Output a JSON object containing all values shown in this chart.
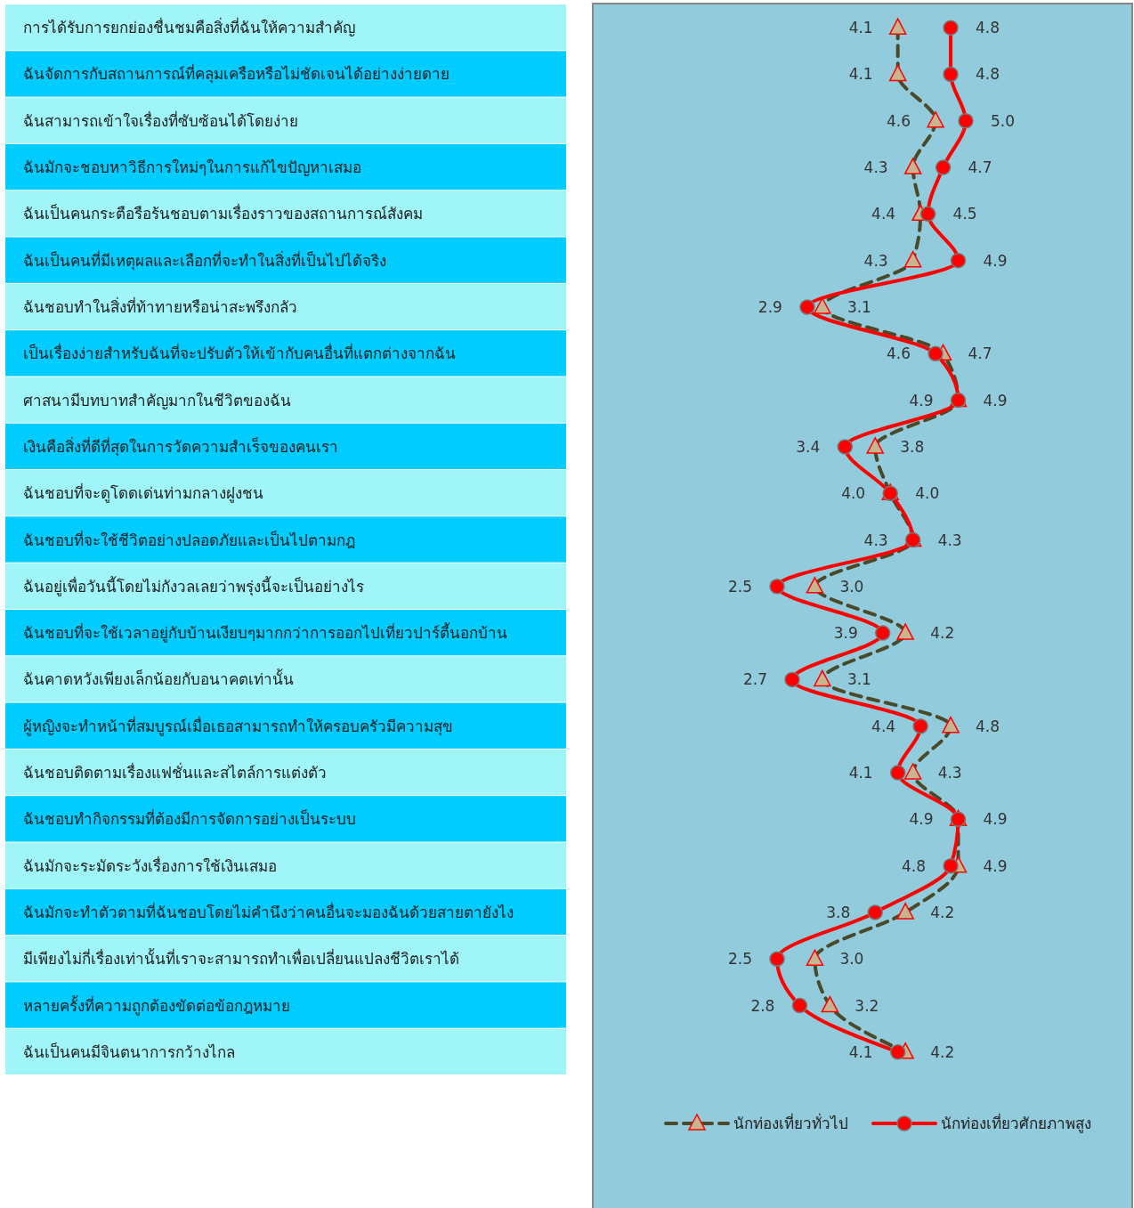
{
  "chart_data": {
    "type": "line",
    "orientation": "horizontal",
    "legend": "bottom",
    "categories": [
      "การได้รับการยกย่องชื่นชมคือสิ่งที่ฉันให้ความสำคัญ",
      "ฉันจัดการกับสถานการณ์ที่คลุมเครือหรือไม่ชัดเจนได้อย่างง่ายดาย",
      "ฉันสามารถเข้าใจเรื่องที่ซับซ้อนได้โดยง่าย",
      "ฉันมักจะชอบหาวิธีการใหม่ๆในการแก้ไขปัญหาเสมอ",
      "ฉันเป็นคนกระตือรือร้นชอบตามเรื่องราวของสถานการณ์สังคม",
      "ฉันเป็นคนที่มีเหตุผลและเลือกที่จะทำในสิ่งที่เป็นไปได้จริง",
      "ฉันชอบทำในสิ่งที่ท้าทายหรือน่าสะพรึงกลัว",
      "เป็นเรื่องง่ายสำหรับฉันที่จะปรับตัวให้เข้ากับคนอื่นที่แตกต่างจากฉัน",
      "ศาสนามีบทบาทสำคัญมากในชีวิตของฉัน",
      "เงินคือสิ่งที่ดีที่สุดในการวัดความสำเร็จของคนเรา",
      "ฉันชอบที่จะดูโดดเด่นท่ามกลางฝูงชน",
      "ฉันชอบที่จะใช้ชีวิตอย่างปลอดภัยและเป็นไปตามกฎ",
      "ฉันอยู่เพื่อวันนี้โดยไม่กังวลเลยว่าพรุ่งนี้จะเป็นอย่างไร",
      "ฉันชอบที่จะใช้เวลาอยู่กับบ้านเงียบๆมากกว่าการออกไปเที่ยวปาร์ตี้นอกบ้าน",
      "ฉันคาดหวังเพียงเล็กน้อยกับอนาคตเท่านั้น",
      "ผู้หญิงจะทำหน้าที่สมบูรณ์เมื่อเธอสามารถทำให้ครอบครัวมีความสุข",
      "ฉันชอบติดตามเรื่องแฟชั่นและสไตล์การแต่งตัว",
      "ฉันชอบทำกิจกรรมที่ต้องมีการจัดการอย่างเป็นระบบ",
      "ฉันมักจะระมัดระวังเรื่องการใช้เงินเสมอ",
      "ฉันมักจะทำตัวตามที่ฉันชอบโดยไม่คำนึงว่าคนอื่นจะมองฉันด้วยสายตายังไง",
      "มีเพียงไม่กี่เรื่องเท่านั้นที่เราจะสามารถทำเพื่อเปลี่ยนแปลงชีวิตเราได้",
      "หลายครั้งที่ความถูกต้องขัดต่อข้อกฎหมาย",
      "ฉันเป็นคนมีจินตนาการกว้างไกล"
    ],
    "series": [
      {
        "name": "นักท่องเที่ยวทั่วไป",
        "color": "#4a4a2a",
        "marker": "triangle",
        "line_style": "dashed",
        "values": [
          4.1,
          4.1,
          4.6,
          4.3,
          4.4,
          4.3,
          3.1,
          4.7,
          4.9,
          3.8,
          4.0,
          4.3,
          3.0,
          4.2,
          3.1,
          4.8,
          4.3,
          4.9,
          4.9,
          4.2,
          3.0,
          3.2,
          4.2
        ],
        "value_labels": [
          "4.1",
          "4.1",
          "4.6",
          "4.3",
          "4.4",
          "4.3",
          "3.1",
          "4.7",
          "4.9",
          "3.8",
          "4.0",
          "4.3",
          "3.0",
          "4.2",
          "3.1",
          "4.8",
          "4.3",
          "4.9",
          "4.9",
          "4.2",
          "3.0",
          "3.2",
          "4.2"
        ]
      },
      {
        "name": "นักท่องเที่ยวศักยภาพสูง",
        "color": "#ff0000",
        "marker": "circle",
        "line_style": "solid",
        "values": [
          4.8,
          4.8,
          5.0,
          4.7,
          4.5,
          4.9,
          2.9,
          4.6,
          4.9,
          3.4,
          4.0,
          4.3,
          2.5,
          3.9,
          2.7,
          4.4,
          4.1,
          4.9,
          4.8,
          3.8,
          2.5,
          2.8,
          4.1
        ],
        "value_labels": [
          "4.8",
          "4.8",
          "5.0",
          "4.7",
          "4.5",
          "4.9",
          "2.9",
          "4.6",
          "4.9",
          "3.4",
          "4.0",
          "4.3",
          "2.5",
          "3.9",
          "2.7",
          "4.4",
          "4.1",
          "4.9",
          "4.8",
          "3.8",
          "2.5",
          "2.8",
          "4.1"
        ]
      }
    ]
  }
}
